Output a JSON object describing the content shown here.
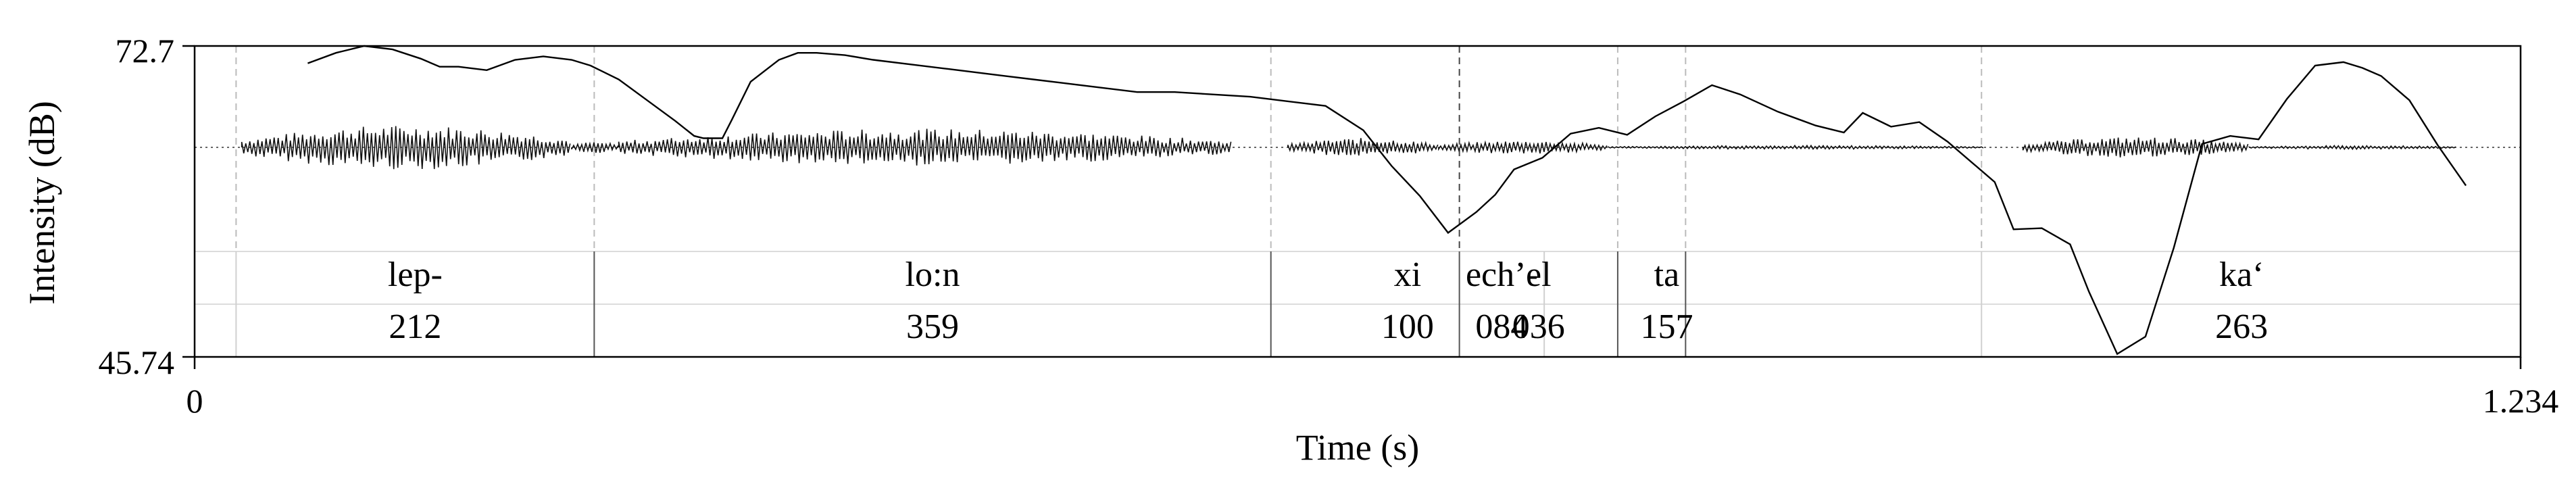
{
  "chart_data": {
    "type": "line",
    "xlabel": "Time (s)",
    "ylabel": "Intensity (dB)",
    "xlim": [
      0,
      1.234
    ],
    "ylim": [
      45.74,
      72.7
    ],
    "x_tick_labels": [
      "0",
      "1.234"
    ],
    "y_tick_labels": [
      "72.7",
      "45.74"
    ],
    "intensity_curve": {
      "x": [
        0.06,
        0.075,
        0.09,
        0.105,
        0.12,
        0.13,
        0.14,
        0.155,
        0.17,
        0.185,
        0.2,
        0.21,
        0.225,
        0.24,
        0.255,
        0.265,
        0.27,
        0.28,
        0.285,
        0.295,
        0.31,
        0.32,
        0.33,
        0.345,
        0.36,
        0.38,
        0.4,
        0.43,
        0.46,
        0.5,
        0.52,
        0.56,
        0.6,
        0.62,
        0.635,
        0.65,
        0.665,
        0.68,
        0.69,
        0.7,
        0.715,
        0.73,
        0.745,
        0.76,
        0.775,
        0.79,
        0.805,
        0.82,
        0.84,
        0.86,
        0.875,
        0.885,
        0.9,
        0.915,
        0.93,
        0.945,
        0.955,
        0.965,
        0.98,
        0.995,
        1.005,
        1.02,
        1.035,
        1.05,
        1.065,
        1.08,
        1.095,
        1.11,
        1.125,
        1.14,
        1.15,
        1.16,
        1.175,
        1.19,
        1.205
      ],
      "y": [
        71.2,
        72.1,
        72.7,
        72.4,
        71.6,
        70.9,
        70.9,
        70.6,
        71.5,
        71.8,
        71.5,
        71.0,
        69.8,
        68.0,
        66.2,
        64.9,
        64.7,
        64.7,
        66.3,
        69.6,
        71.5,
        72.1,
        72.1,
        71.9,
        71.5,
        71.1,
        70.7,
        70.1,
        69.5,
        68.7,
        68.7,
        68.3,
        67.5,
        65.4,
        62.3,
        59.7,
        56.5,
        58.3,
        59.8,
        62.0,
        63.0,
        65.1,
        65.6,
        65.0,
        66.6,
        67.9,
        69.3,
        68.5,
        67.0,
        65.8,
        65.2,
        66.9,
        65.7,
        66.1,
        64.4,
        62.3,
        60.9,
        56.8,
        56.9,
        55.5,
        51.4,
        46.0,
        47.5,
        55.2,
        64.2,
        64.9,
        64.6,
        68.1,
        71.0,
        71.3,
        70.8,
        70.1,
        68.0,
        64.1,
        60.6
      ]
    },
    "boundaries": [
      0.022,
      0.212,
      0.571,
      0.671,
      0.755,
      0.791,
      0.948
    ],
    "segments": [
      {
        "label": "lep-",
        "duration": "212"
      },
      {
        "label": "lo:n",
        "duration": "359"
      },
      {
        "label": "xi",
        "duration": "100"
      },
      {
        "label": "ech’-",
        "duration": "084"
      },
      {
        "label": "el",
        "duration": "036"
      },
      {
        "label": "ta",
        "duration": "157"
      },
      {
        "label": "ka‘",
        "duration": "263"
      }
    ],
    "waveform_regions": [
      {
        "from": 0.025,
        "to": 0.2,
        "strength": 0.6
      },
      {
        "from": 0.2,
        "to": 0.225,
        "strength": 0.15
      },
      {
        "from": 0.225,
        "to": 0.55,
        "strength": 0.5
      },
      {
        "from": 0.58,
        "to": 0.66,
        "strength": 0.25
      },
      {
        "from": 0.66,
        "to": 0.75,
        "strength": 0.18
      },
      {
        "from": 0.75,
        "to": 0.95,
        "strength": 0.05
      },
      {
        "from": 0.97,
        "to": 1.09,
        "strength": 0.28
      },
      {
        "from": 1.09,
        "to": 1.2,
        "strength": 0.05
      }
    ]
  }
}
